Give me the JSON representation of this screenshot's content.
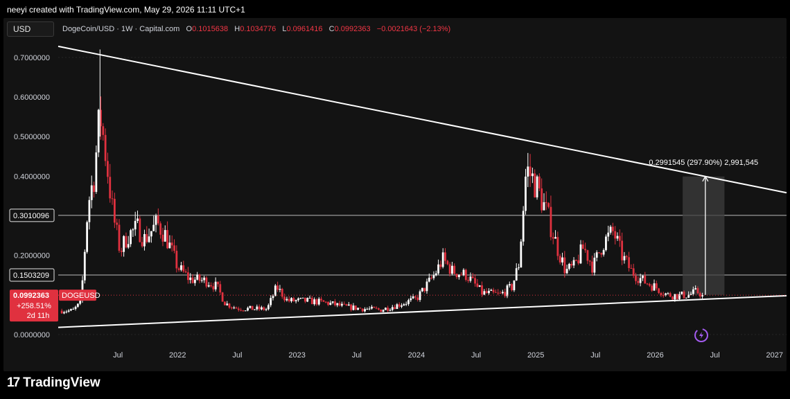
{
  "header": {
    "text": "neeyi created with TradingView.com, May 29, 2026 11:11 UTC+1"
  },
  "toolbar": {
    "currency_label": "USD"
  },
  "legend": {
    "symbol": "DogeCoin/USD · 1W · Capital.com",
    "o_key": "O",
    "o_val": "0.1015638",
    "h_key": "H",
    "h_val": "0.1034776",
    "l_key": "L",
    "l_val": "0.0961416",
    "c_key": "C",
    "c_val": "0.0992363",
    "change": "−0.0021643 (−2.13%)"
  },
  "colors": {
    "up": "#ffffff",
    "down": "#e0313f",
    "background": "#131313",
    "trendline": "#ffffff"
  },
  "chart_data": {
    "type": "candlestick",
    "symbol": "DOGEUSD",
    "ylim": [
      -0.03,
      0.74
    ],
    "xlim": [
      2021.0,
      2027.1
    ],
    "y_ticks": [
      "0.7000000",
      "0.6000000",
      "0.5000000",
      "0.4000000",
      "0.2000000",
      "0.0000000"
    ],
    "y_tick_values": [
      0.7,
      0.6,
      0.5,
      0.4,
      0.2,
      0.0
    ],
    "x_ticks": [
      {
        "label": "Jul",
        "t": 2021.5
      },
      {
        "label": "2022",
        "t": 2022.0
      },
      {
        "label": "Jul",
        "t": 2022.5
      },
      {
        "label": "2023",
        "t": 2023.0
      },
      {
        "label": "Jul",
        "t": 2023.5
      },
      {
        "label": "2024",
        "t": 2024.0
      },
      {
        "label": "Jul",
        "t": 2024.5
      },
      {
        "label": "2025",
        "t": 2025.0
      },
      {
        "label": "Jul",
        "t": 2025.5
      },
      {
        "label": "2026",
        "t": 2026.0
      },
      {
        "label": "Jul",
        "t": 2026.5
      },
      {
        "label": "2027",
        "t": 2027.0
      }
    ],
    "horizontal_levels": [
      {
        "label": "0.3010096",
        "value": 0.3010096
      },
      {
        "label": "0.1503209",
        "value": 0.1503209
      }
    ],
    "current_price": {
      "value": 0.0992363,
      "price_label": "0.0992363",
      "symbol_label": "DOGEUSD",
      "change_label": "+258.51%",
      "countdown_label": "2d 11h"
    },
    "trendlines": [
      {
        "name": "upper",
        "from": {
          "t": 2021.0,
          "v": 0.728
        },
        "to": {
          "t": 2027.1,
          "v": 0.358
        }
      },
      {
        "name": "lower",
        "from": {
          "t": 2021.0,
          "v": 0.018
        },
        "to": {
          "t": 2027.1,
          "v": 0.098
        }
      }
    ],
    "measure": {
      "label": "0.2991545 (297.90%) 2,991,545",
      "t_start": 2026.23,
      "t_end": 2026.58,
      "v_low": 0.1,
      "v_high": 0.3991545,
      "t_arrow": 2026.42
    },
    "anchors": [
      {
        "t": 2021.03,
        "v": 0.06
      },
      {
        "t": 2021.12,
        "v": 0.06
      },
      {
        "t": 2021.19,
        "v": 0.08
      },
      {
        "t": 2021.25,
        "v": 0.33
      },
      {
        "t": 2021.3,
        "v": 0.4
      },
      {
        "t": 2021.35,
        "v": 0.56
      },
      {
        "t": 2021.4,
        "v": 0.45
      },
      {
        "t": 2021.46,
        "v": 0.3
      },
      {
        "t": 2021.52,
        "v": 0.21
      },
      {
        "t": 2021.58,
        "v": 0.25
      },
      {
        "t": 2021.67,
        "v": 0.27
      },
      {
        "t": 2021.72,
        "v": 0.24
      },
      {
        "t": 2021.83,
        "v": 0.28
      },
      {
        "t": 2021.9,
        "v": 0.25
      },
      {
        "t": 2022.0,
        "v": 0.17
      },
      {
        "t": 2022.1,
        "v": 0.14
      },
      {
        "t": 2022.25,
        "v": 0.135
      },
      {
        "t": 2022.33,
        "v": 0.12
      },
      {
        "t": 2022.4,
        "v": 0.078
      },
      {
        "t": 2022.5,
        "v": 0.066
      },
      {
        "t": 2022.6,
        "v": 0.065
      },
      {
        "t": 2022.75,
        "v": 0.064
      },
      {
        "t": 2022.83,
        "v": 0.12
      },
      {
        "t": 2022.92,
        "v": 0.085
      },
      {
        "t": 2023.08,
        "v": 0.085
      },
      {
        "t": 2023.25,
        "v": 0.08
      },
      {
        "t": 2023.4,
        "v": 0.07
      },
      {
        "t": 2023.55,
        "v": 0.065
      },
      {
        "t": 2023.7,
        "v": 0.062
      },
      {
        "t": 2023.85,
        "v": 0.075
      },
      {
        "t": 2024.0,
        "v": 0.09
      },
      {
        "t": 2024.15,
        "v": 0.15
      },
      {
        "t": 2024.22,
        "v": 0.19
      },
      {
        "t": 2024.3,
        "v": 0.16
      },
      {
        "t": 2024.42,
        "v": 0.15
      },
      {
        "t": 2024.55,
        "v": 0.105
      },
      {
        "t": 2024.7,
        "v": 0.1
      },
      {
        "t": 2024.8,
        "v": 0.12
      },
      {
        "t": 2024.86,
        "v": 0.18
      },
      {
        "t": 2024.92,
        "v": 0.42
      },
      {
        "t": 2025.0,
        "v": 0.38
      },
      {
        "t": 2025.1,
        "v": 0.3
      },
      {
        "t": 2025.18,
        "v": 0.22
      },
      {
        "t": 2025.25,
        "v": 0.16
      },
      {
        "t": 2025.32,
        "v": 0.17
      },
      {
        "t": 2025.4,
        "v": 0.22
      },
      {
        "t": 2025.48,
        "v": 0.17
      },
      {
        "t": 2025.56,
        "v": 0.23
      },
      {
        "t": 2025.65,
        "v": 0.26
      },
      {
        "t": 2025.72,
        "v": 0.2
      },
      {
        "t": 2025.8,
        "v": 0.16
      },
      {
        "t": 2025.9,
        "v": 0.135
      },
      {
        "t": 2026.0,
        "v": 0.12
      },
      {
        "t": 2026.1,
        "v": 0.1
      },
      {
        "t": 2026.2,
        "v": 0.098
      },
      {
        "t": 2026.28,
        "v": 0.1
      },
      {
        "t": 2026.35,
        "v": 0.108
      },
      {
        "t": 2026.41,
        "v": 0.0992
      }
    ]
  }
}
